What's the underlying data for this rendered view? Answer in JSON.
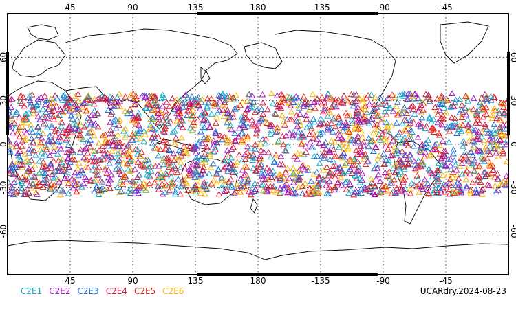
{
  "chart_data": {
    "type": "scatter",
    "projection": "cylindrical equidistant, center 180",
    "lon_range": [
      0,
      360
    ],
    "lat_range": [
      -90,
      90
    ],
    "grid": true,
    "top_ticks": [
      "45",
      "90",
      "135",
      "180",
      "-135",
      "-90",
      "-45"
    ],
    "bottom_ticks": [
      "45",
      "90",
      "135",
      "180",
      "-135",
      "-90",
      "-45"
    ],
    "left_ticks": [
      "60",
      "30",
      "0",
      "-30",
      "-60"
    ],
    "right_ticks": [
      "60",
      "30",
      "0",
      "-30",
      "-60"
    ],
    "marker": "open triangle",
    "lat_band_of_points": [
      -35,
      35
    ],
    "series": [
      {
        "name": "C2E1",
        "color": "#16a9c9"
      },
      {
        "name": "C2E2",
        "color": "#a215c0"
      },
      {
        "name": "C2E3",
        "color": "#1f6fd9"
      },
      {
        "name": "C2E4",
        "color": "#d6183a"
      },
      {
        "name": "C2E5",
        "color": "#e0251d"
      },
      {
        "name": "C2E6",
        "color": "#f5b400"
      }
    ]
  },
  "legend": {
    "items": [
      "C2E1",
      "C2E2",
      "C2E3",
      "C2E4",
      "C2E5",
      "C2E6"
    ]
  },
  "stamp": "UCARdry.2024-08-23"
}
